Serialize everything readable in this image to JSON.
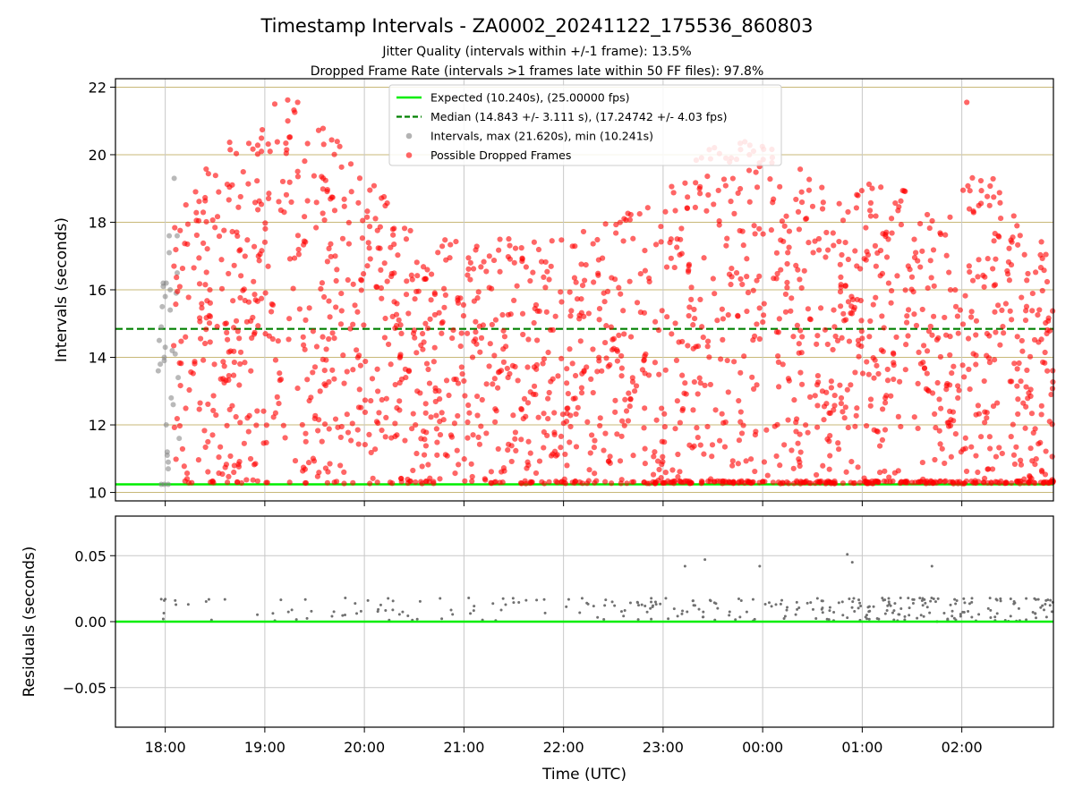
{
  "chart_data": [
    {
      "type": "scatter",
      "panel": "top",
      "title": "Timestamp Intervals - ZA0002_20241122_175536_860803",
      "subtitle_lines": [
        "Jitter Quality (intervals within +/-1 frame): 13.5%",
        "Dropped Frame Rate (intervals >1 frames late within 50 FF files): 97.8%"
      ],
      "ylabel": "Intervals (seconds)",
      "xlabel": "",
      "ylim": [
        9.75,
        22.25
      ],
      "xlim_hours": [
        17.5,
        26.92
      ],
      "y_ticks": [
        10,
        12,
        14,
        16,
        18,
        20,
        22
      ],
      "y_tick_labels": [
        "10",
        "12",
        "14",
        "16",
        "18",
        "20",
        "22"
      ],
      "grid": "on",
      "legend": {
        "placement": "top-center",
        "entries": [
          {
            "label": "Expected (10.240s), (25.00000 fps)",
            "style": "solid-line",
            "color": "#00ee00"
          },
          {
            "label": "Median (14.843 +/- 3.111 s), (17.24742 +/- 4.03 fps)",
            "style": "dashed-line",
            "color": "#008000"
          },
          {
            "label": "Intervals, max (21.620s), min (10.241s)",
            "style": "marker",
            "color": "#808080"
          },
          {
            "label": "Possible Dropped Frames",
            "style": "marker",
            "color": "#ff0000"
          }
        ]
      },
      "reference_lines": [
        {
          "name": "expected",
          "y": 10.24,
          "color": "#00ee00",
          "style": "solid"
        },
        {
          "name": "median",
          "y": 14.843,
          "color": "#008000",
          "style": "dashed"
        }
      ],
      "series": [
        {
          "name": "Intervals, max (21.620s), min (10.241s)",
          "color": "#808080",
          "points": [
            [
              17.93,
              13.6
            ],
            [
              17.94,
              14.5
            ],
            [
              17.95,
              13.8
            ],
            [
              17.96,
              14.9
            ],
            [
              17.97,
              15.5
            ],
            [
              17.98,
              16.1
            ],
            [
              17.98,
              16.2
            ],
            [
              17.99,
              14.0
            ],
            [
              17.99,
              13.9
            ],
            [
              18.0,
              14.3
            ],
            [
              18.0,
              15.8
            ],
            [
              18.01,
              16.2
            ],
            [
              18.01,
              12.0
            ],
            [
              18.02,
              11.2
            ],
            [
              18.02,
              11.1
            ],
            [
              18.03,
              10.7
            ],
            [
              18.03,
              10.9
            ],
            [
              18.03,
              10.24
            ],
            [
              17.96,
              10.24
            ],
            [
              17.99,
              10.24
            ],
            [
              18.04,
              17.1
            ],
            [
              18.04,
              17.6
            ],
            [
              18.05,
              16.0
            ],
            [
              18.05,
              15.4
            ],
            [
              18.06,
              12.8
            ],
            [
              18.07,
              14.2
            ],
            [
              18.08,
              12.6
            ],
            [
              18.09,
              19.3
            ],
            [
              18.1,
              14.1
            ],
            [
              18.11,
              15.9
            ],
            [
              18.12,
              17.6
            ],
            [
              18.12,
              16.5
            ],
            [
              18.13,
              13.4
            ],
            [
              18.14,
              11.6
            ]
          ]
        },
        {
          "name": "Possible Dropped Frames",
          "color": "#ff0000",
          "points": "generated"
        }
      ]
    },
    {
      "type": "scatter",
      "panel": "bottom",
      "ylabel": "Residuals (seconds)",
      "xlabel": "Time (UTC)",
      "ylim": [
        -0.08,
        0.08
      ],
      "y_ticks": [
        0.05,
        0.0,
        -0.05
      ],
      "y_tick_labels": [
        "0.05",
        "0.00",
        "−0.05"
      ],
      "x_ticks_hours": [
        18,
        19,
        20,
        21,
        22,
        23,
        24,
        25,
        26
      ],
      "x_tick_labels": [
        "18:00",
        "19:00",
        "20:00",
        "21:00",
        "22:00",
        "23:00",
        "00:00",
        "01:00",
        "02:00"
      ],
      "grid": "on",
      "reference_lines": [
        {
          "name": "zero",
          "y": 0.0,
          "color": "#00ee00",
          "style": "solid"
        }
      ],
      "outliers": [
        [
          23.22,
          0.042
        ],
        [
          23.42,
          0.047
        ],
        [
          23.97,
          0.042
        ],
        [
          24.85,
          0.051
        ],
        [
          24.9,
          0.045
        ],
        [
          25.7,
          0.042
        ]
      ],
      "series": [
        {
          "name": "residuals",
          "color": "#707070",
          "points": "generated"
        }
      ]
    }
  ]
}
